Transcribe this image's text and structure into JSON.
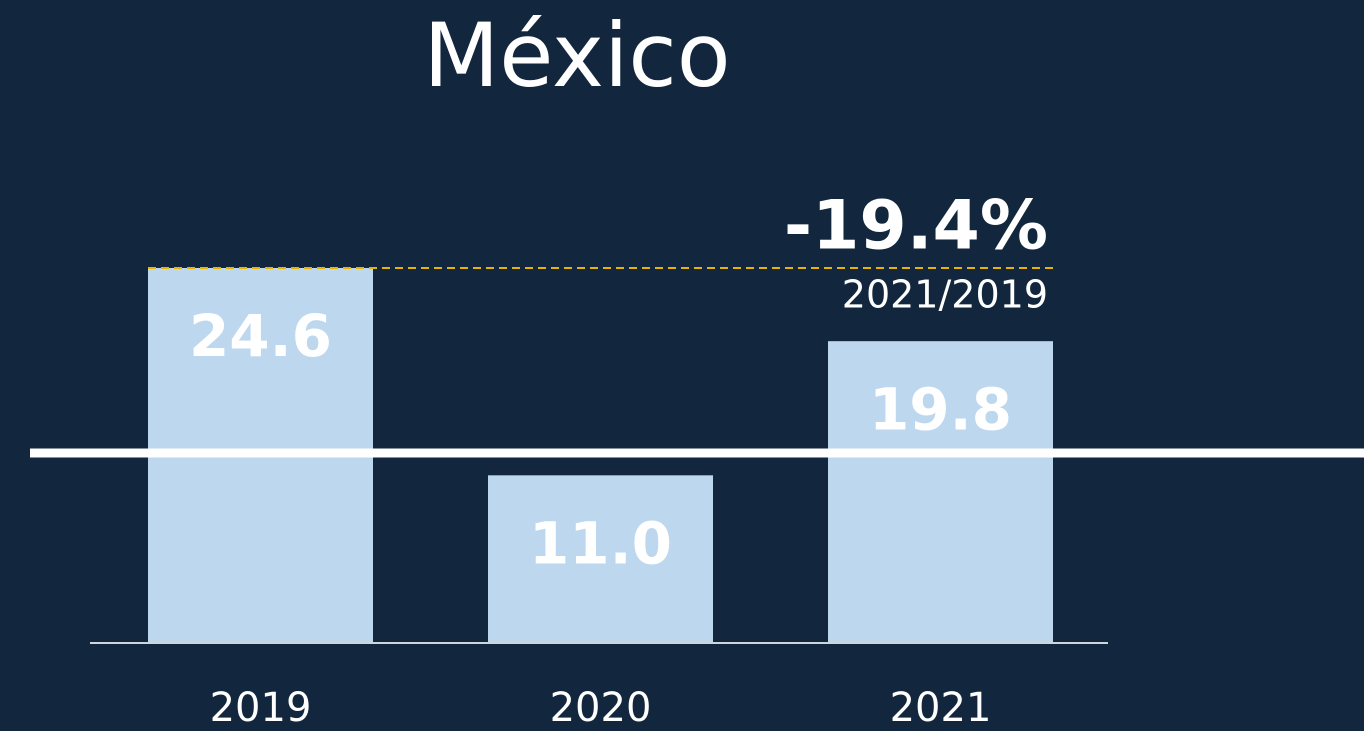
{
  "chart_data": {
    "type": "bar",
    "title": "México",
    "categories": [
      "2019",
      "2020",
      "2021"
    ],
    "values": [
      24.6,
      11.0,
      19.8
    ],
    "value_labels": [
      "24.6",
      "11.0",
      "19.8"
    ],
    "color": "#bdd7ee",
    "annotations": {
      "change": "-19.4%",
      "period": "2021/2019"
    }
  }
}
